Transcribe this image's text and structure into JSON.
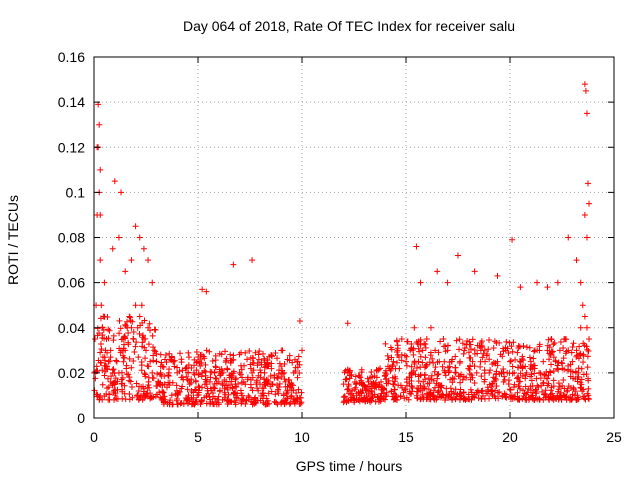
{
  "chart_data": {
    "type": "scatter",
    "title": "Day 064 of 2018, Rate Of TEC Index for receiver salu",
    "xlabel": "GPS time / hours",
    "ylabel": "ROTI / TECUs",
    "xlim": [
      0,
      25
    ],
    "ylim": [
      0,
      0.16
    ],
    "xticks": [
      0,
      5,
      10,
      15,
      20,
      25
    ],
    "xtick_labels": [
      "0",
      "5",
      "10",
      "15",
      "20",
      "25"
    ],
    "yticks": [
      0,
      0.02,
      0.04,
      0.06,
      0.08,
      0.1,
      0.12,
      0.14,
      0.16
    ],
    "ytick_labels": [
      "0",
      "0.02",
      "0.04",
      "0.06",
      "0.08",
      "0.1",
      "0.12",
      "0.14",
      "0.16"
    ],
    "grid": true,
    "marker": "+",
    "color": "#ff0000",
    "series": [
      {
        "name": "ROTI",
        "x": [
          0.0,
          0.05,
          0.1,
          0.15,
          0.2,
          0.25,
          0.3,
          0.35,
          0.4,
          0.45,
          0.5,
          0.55,
          0.6,
          0.7,
          0.8,
          0.9,
          1.0,
          1.1,
          1.2,
          1.3,
          1.4,
          1.5,
          1.6,
          1.7,
          1.8,
          1.9,
          2.0,
          2.1,
          2.2,
          2.3,
          2.4,
          2.5,
          2.6,
          2.7,
          2.8,
          2.9,
          3.0,
          3.2,
          3.4,
          3.6,
          3.8,
          4.0,
          4.2,
          4.4,
          4.6,
          4.8,
          5.0,
          5.2,
          5.4,
          5.6,
          5.8,
          6.0,
          6.2,
          6.4,
          6.6,
          6.8,
          7.0,
          7.2,
          7.4,
          7.6,
          7.8,
          8.0,
          8.2,
          8.4,
          8.6,
          8.8,
          9.0,
          9.2,
          9.4,
          9.6,
          9.8,
          10.0,
          12.0,
          12.2,
          12.4,
          12.6,
          12.8,
          13.0,
          13.2,
          13.4,
          13.6,
          13.8,
          14.0,
          14.2,
          14.4,
          14.6,
          14.8,
          15.0,
          15.2,
          15.4,
          15.6,
          15.8,
          16.0,
          16.2,
          16.4,
          16.6,
          16.8,
          17.0,
          17.2,
          17.4,
          17.6,
          17.8,
          18.0,
          18.2,
          18.4,
          18.6,
          18.8,
          19.0,
          19.2,
          19.4,
          19.6,
          19.8,
          20.0,
          20.2,
          20.4,
          20.6,
          20.8,
          21.0,
          21.2,
          21.4,
          21.6,
          21.8,
          22.0,
          22.2,
          22.4,
          22.6,
          22.8,
          23.0,
          23.2,
          23.4,
          23.5,
          23.6,
          23.7,
          23.8,
          0.2,
          0.25,
          0.3,
          0.15,
          0.3,
          0.9,
          1.2,
          1.5,
          1.8,
          2.0,
          2.2,
          2.4,
          2.6,
          2.8,
          1.0,
          1.3,
          5.2,
          5.4,
          6.7,
          7.6,
          9.9,
          12.2,
          15.5,
          15.7,
          16.5,
          17.0,
          17.5,
          18.3,
          19.4,
          20.1,
          20.5,
          21.3,
          21.8,
          22.3,
          22.8,
          23.2,
          23.4,
          23.6,
          23.65,
          23.7,
          23.75,
          23.8,
          23.6,
          23.7
        ],
        "y": [
          0.02,
          0.035,
          0.05,
          0.09,
          0.12,
          0.1,
          0.07,
          0.05,
          0.04,
          0.045,
          0.06,
          0.03,
          0.035,
          0.025,
          0.03,
          0.02,
          0.015,
          0.025,
          0.02,
          0.03,
          0.035,
          0.03,
          0.04,
          0.045,
          0.04,
          0.035,
          0.05,
          0.04,
          0.045,
          0.05,
          0.035,
          0.03,
          0.04,
          0.025,
          0.02,
          0.03,
          0.025,
          0.02,
          0.015,
          0.02,
          0.025,
          0.02,
          0.018,
          0.022,
          0.015,
          0.02,
          0.025,
          0.02,
          0.015,
          0.018,
          0.02,
          0.016,
          0.02,
          0.022,
          0.018,
          0.015,
          0.02,
          0.016,
          0.018,
          0.02,
          0.015,
          0.018,
          0.02,
          0.016,
          0.015,
          0.018,
          0.02,
          0.016,
          0.015,
          0.02,
          0.025,
          0.03,
          0.015,
          0.02,
          0.012,
          0.015,
          0.018,
          0.014,
          0.016,
          0.015,
          0.018,
          0.016,
          0.02,
          0.022,
          0.025,
          0.03,
          0.035,
          0.025,
          0.03,
          0.04,
          0.025,
          0.03,
          0.035,
          0.04,
          0.03,
          0.025,
          0.035,
          0.03,
          0.025,
          0.02,
          0.025,
          0.03,
          0.022,
          0.025,
          0.02,
          0.03,
          0.025,
          0.02,
          0.018,
          0.025,
          0.02,
          0.03,
          0.025,
          0.02,
          0.018,
          0.022,
          0.02,
          0.025,
          0.03,
          0.02,
          0.025,
          0.03,
          0.035,
          0.025,
          0.03,
          0.035,
          0.03,
          0.025,
          0.03,
          0.04,
          0.05,
          0.045,
          0.04,
          0.035,
          0.139,
          0.13,
          0.11,
          0.12,
          0.09,
          0.075,
          0.08,
          0.065,
          0.07,
          0.085,
          0.08,
          0.075,
          0.07,
          0.06,
          0.105,
          0.1,
          0.057,
          0.056,
          0.068,
          0.07,
          0.043,
          0.042,
          0.076,
          0.06,
          0.065,
          0.06,
          0.072,
          0.065,
          0.063,
          0.079,
          0.058,
          0.06,
          0.058,
          0.06,
          0.08,
          0.07,
          0.06,
          0.148,
          0.145,
          0.135,
          0.104,
          0.095,
          0.09,
          0.08
        ],
        "dense_bands": [
          {
            "x": [
              0,
              3.0
            ],
            "y": [
              0.008,
              0.045
            ]
          },
          {
            "x": [
              3.0,
              10.0
            ],
            "y": [
              0.006,
              0.03
            ]
          },
          {
            "x": [
              12.0,
              14.0
            ],
            "y": [
              0.007,
              0.022
            ]
          },
          {
            "x": [
              14.0,
              23.8
            ],
            "y": [
              0.008,
              0.035
            ]
          }
        ]
      }
    ]
  }
}
